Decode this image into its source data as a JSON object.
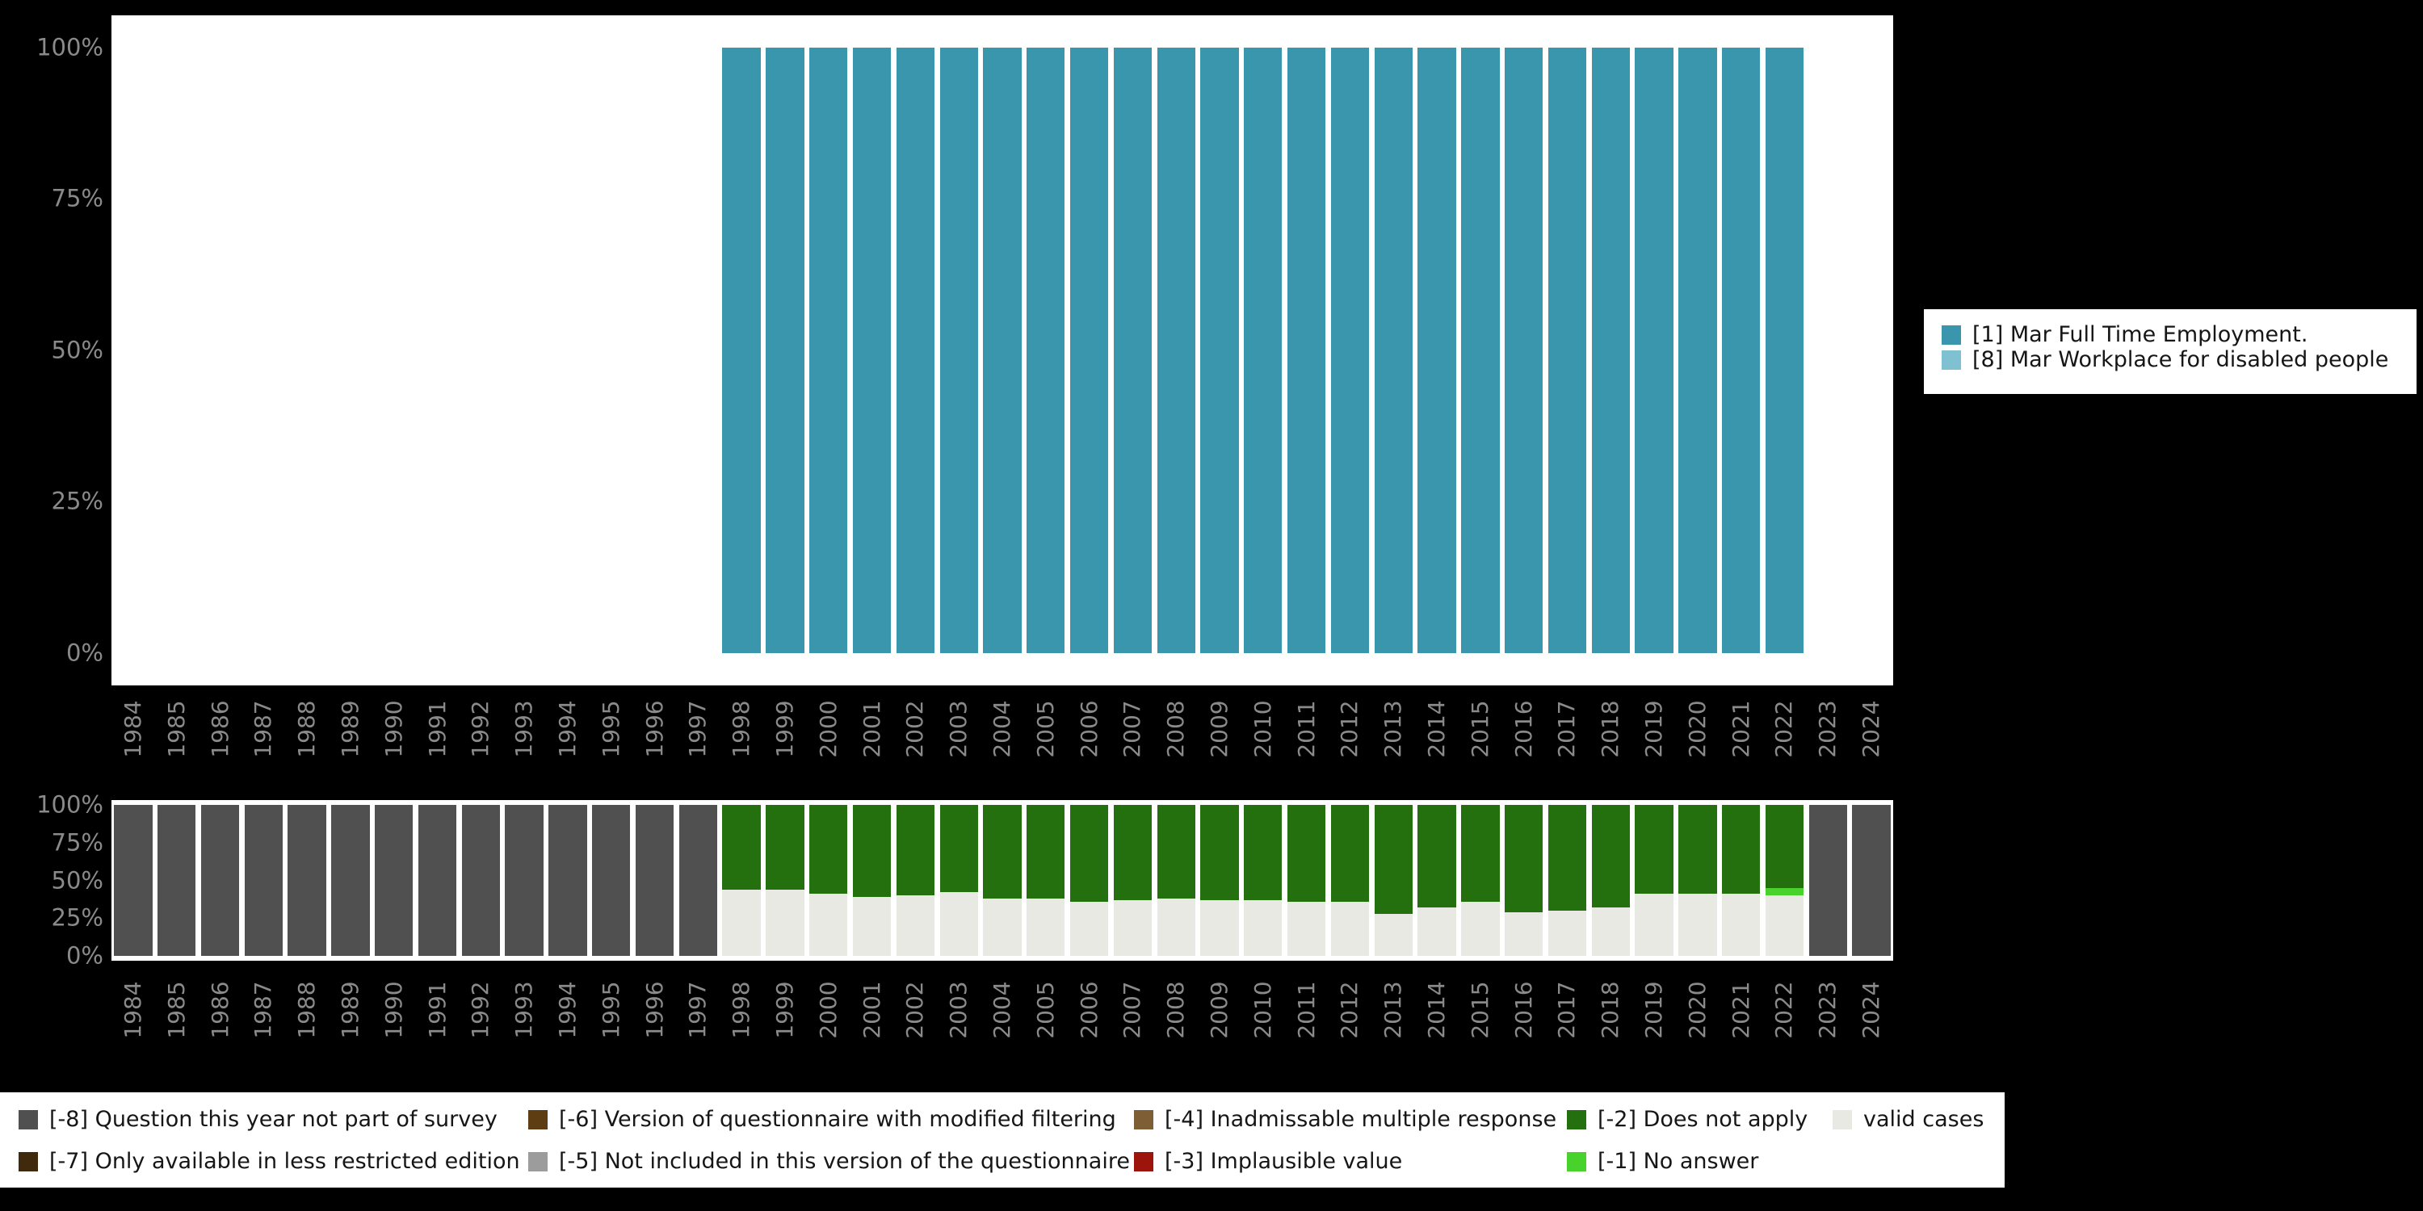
{
  "axes": {
    "y_ticks": [
      "100%",
      "75%",
      "50%",
      "25%",
      "0%"
    ]
  },
  "top_legend": {
    "items": [
      {
        "label": "[1] Mar Full Time Employment.",
        "color": "#3a96ad"
      },
      {
        "label": "[8] Mar Workplace for disabled people",
        "color": "#7fc0d2"
      }
    ]
  },
  "bottom_legend": {
    "columns": [
      [
        {
          "label": "[-8] Question this year not part of survey",
          "color": "#505050"
        },
        {
          "label": "[-7] Only available in less restricted edition",
          "color": "#402a0e"
        }
      ],
      [
        {
          "label": "[-6] Version of questionnaire with modified filtering",
          "color": "#5e3d12"
        },
        {
          "label": "[-5] Not included in this version of the questionnaire",
          "color": "#9c9c9c"
        }
      ],
      [
        {
          "label": "[-4] Inadmissable multiple response",
          "color": "#7e5f35"
        },
        {
          "label": "[-3] Implausible value",
          "color": "#9c140c"
        }
      ],
      [
        {
          "label": "[-2] Does not apply",
          "color": "#24700f"
        },
        {
          "label": "[-1] No answer",
          "color": "#49d22c"
        }
      ],
      [
        {
          "label": "valid cases",
          "color": "#e9e9e4"
        }
      ]
    ]
  },
  "chart_data": [
    {
      "type": "bar",
      "stacked": true,
      "ylim": [
        0,
        100
      ],
      "y_tick_labels": [
        "0%",
        "25%",
        "50%",
        "75%",
        "100%"
      ],
      "legend_position": "right",
      "categories": [
        "1984",
        "1985",
        "1986",
        "1987",
        "1988",
        "1989",
        "1990",
        "1991",
        "1992",
        "1993",
        "1994",
        "1995",
        "1996",
        "1997",
        "1998",
        "1999",
        "2000",
        "2001",
        "2002",
        "2003",
        "2004",
        "2005",
        "2006",
        "2007",
        "2008",
        "2009",
        "2010",
        "2011",
        "2012",
        "2013",
        "2014",
        "2015",
        "2016",
        "2017",
        "2018",
        "2019",
        "2020",
        "2021",
        "2022",
        "2023",
        "2024"
      ],
      "series": [
        {
          "name": "[1] Mar Full Time Employment.",
          "color": "#3a96ad",
          "values": [
            0,
            0,
            0,
            0,
            0,
            0,
            0,
            0,
            0,
            0,
            0,
            0,
            0,
            0,
            100,
            100,
            100,
            100,
            100,
            100,
            100,
            100,
            100,
            100,
            100,
            100,
            100,
            100,
            100,
            100,
            100,
            100,
            100,
            100,
            100,
            100,
            100,
            100,
            100,
            0,
            0
          ]
        },
        {
          "name": "[8] Mar Workplace for disabled people",
          "color": "#7fc0d2",
          "values": [
            0,
            0,
            0,
            0,
            0,
            0,
            0,
            0,
            0,
            0,
            0,
            0,
            0,
            0,
            0,
            0,
            0,
            0,
            0,
            0,
            0,
            0,
            0,
            0,
            0,
            0,
            0,
            0,
            0,
            0,
            0,
            0,
            0,
            0,
            0,
            0,
            0,
            0,
            0,
            0,
            0
          ]
        }
      ]
    },
    {
      "type": "bar",
      "stacked": true,
      "ylim": [
        0,
        100
      ],
      "y_tick_labels": [
        "0%",
        "25%",
        "50%",
        "75%",
        "100%"
      ],
      "legend_position": "bottom",
      "categories": [
        "1984",
        "1985",
        "1986",
        "1987",
        "1988",
        "1989",
        "1990",
        "1991",
        "1992",
        "1993",
        "1994",
        "1995",
        "1996",
        "1997",
        "1998",
        "1999",
        "2000",
        "2001",
        "2002",
        "2003",
        "2004",
        "2005",
        "2006",
        "2007",
        "2008",
        "2009",
        "2010",
        "2011",
        "2012",
        "2013",
        "2014",
        "2015",
        "2016",
        "2017",
        "2018",
        "2019",
        "2020",
        "2021",
        "2022",
        "2023",
        "2024"
      ],
      "series": [
        {
          "name": "valid cases",
          "color": "#e9e9e4",
          "values": [
            0,
            0,
            0,
            0,
            0,
            0,
            0,
            0,
            0,
            0,
            0,
            0,
            0,
            0,
            44,
            44,
            41,
            39,
            40,
            42,
            38,
            38,
            36,
            37,
            38,
            37,
            37,
            36,
            36,
            28,
            32,
            36,
            29,
            30,
            32,
            41,
            41,
            41,
            40,
            0,
            0
          ]
        },
        {
          "name": "[-1] No answer",
          "color": "#49d22c",
          "values": [
            0,
            0,
            0,
            0,
            0,
            0,
            0,
            0,
            0,
            0,
            0,
            0,
            0,
            0,
            0,
            0,
            0,
            0,
            0,
            0,
            0,
            0,
            0,
            0,
            0,
            0,
            0,
            0,
            0,
            0,
            0,
            0,
            0,
            0,
            0,
            0,
            0,
            0,
            5,
            0,
            0
          ]
        },
        {
          "name": "[-2] Does not apply",
          "color": "#24700f",
          "values": [
            0,
            0,
            0,
            0,
            0,
            0,
            0,
            0,
            0,
            0,
            0,
            0,
            0,
            0,
            56,
            56,
            59,
            61,
            60,
            58,
            62,
            62,
            64,
            63,
            62,
            63,
            63,
            64,
            64,
            72,
            68,
            64,
            71,
            70,
            68,
            59,
            59,
            59,
            55,
            0,
            0
          ]
        },
        {
          "name": "[-8] Question this year not part of survey",
          "color": "#505050",
          "values": [
            100,
            100,
            100,
            100,
            100,
            100,
            100,
            100,
            100,
            100,
            100,
            100,
            100,
            100,
            0,
            0,
            0,
            0,
            0,
            0,
            0,
            0,
            0,
            0,
            0,
            0,
            0,
            0,
            0,
            0,
            0,
            0,
            0,
            0,
            0,
            0,
            0,
            0,
            0,
            100,
            100
          ]
        }
      ]
    }
  ]
}
